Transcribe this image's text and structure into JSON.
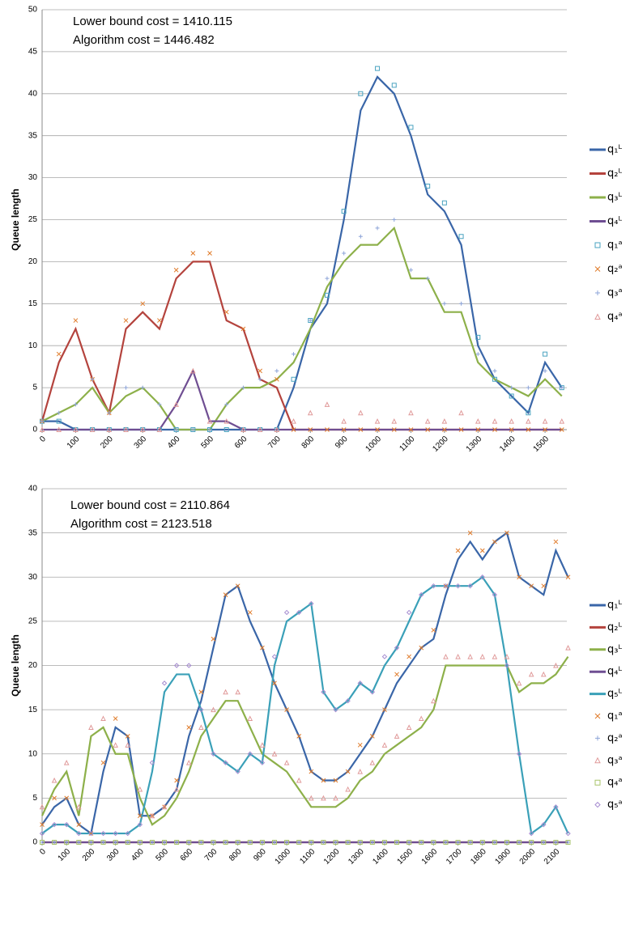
{
  "chart_data": [
    {
      "type": "line",
      "annotations": [
        "Lower bound cost = 1410.115",
        "Algorithm cost = 1446.482"
      ],
      "y_label": "Queue length",
      "xlim": [
        0,
        1565
      ],
      "ylim": [
        0,
        50
      ],
      "xticks": [
        0,
        100,
        200,
        300,
        400,
        500,
        600,
        700,
        800,
        900,
        1000,
        1100,
        1200,
        1300,
        1400,
        1500
      ],
      "yticks": [
        0,
        5,
        10,
        15,
        20,
        25,
        30,
        35,
        40,
        45,
        50
      ],
      "grid": true,
      "legend": "right",
      "x": [
        0,
        50,
        100,
        150,
        200,
        250,
        300,
        350,
        400,
        450,
        500,
        550,
        600,
        650,
        700,
        750,
        800,
        850,
        900,
        950,
        1000,
        1050,
        1100,
        1150,
        1200,
        1250,
        1300,
        1350,
        1400,
        1450,
        1500,
        1550
      ],
      "series": [
        {
          "name": "q₁ᴸ",
          "color": "#3a66a8",
          "marker": "line",
          "values": [
            1,
            1,
            0,
            0,
            0,
            0,
            0,
            0,
            0,
            0,
            0,
            0,
            0,
            0,
            0,
            5,
            12,
            15,
            25,
            38,
            42,
            40,
            35,
            28,
            26,
            22,
            10,
            6,
            4,
            2,
            8,
            5
          ]
        },
        {
          "name": "q₂ᴸ",
          "color": "#b4433d",
          "marker": "line",
          "values": [
            1,
            8,
            12,
            6,
            2,
            12,
            14,
            12,
            18,
            20,
            20,
            13,
            12,
            6,
            5,
            0,
            0,
            0,
            0,
            0,
            0,
            0,
            0,
            0,
            0,
            0,
            0,
            0,
            0,
            0,
            0,
            0
          ]
        },
        {
          "name": "q₃ᴸ",
          "color": "#8db04a",
          "marker": "line",
          "values": [
            1,
            2,
            3,
            5,
            2,
            4,
            5,
            3,
            0,
            0,
            0,
            3,
            5,
            5,
            6,
            8,
            12,
            17,
            20,
            22,
            22,
            24,
            18,
            18,
            14,
            14,
            8,
            6,
            5,
            4,
            6,
            4
          ]
        },
        {
          "name": "q₄ᴸ",
          "color": "#6f4e92",
          "marker": "line",
          "values": [
            0,
            0,
            0,
            0,
            0,
            0,
            0,
            0,
            3,
            7,
            1,
            1,
            0,
            0,
            0,
            0,
            0,
            0,
            0,
            0,
            0,
            0,
            0,
            0,
            0,
            0,
            0,
            0,
            0,
            0,
            0,
            0
          ]
        },
        {
          "name": "q₁ᵃ",
          "color": "#4aa3c0",
          "marker": "square",
          "values": [
            1,
            1,
            0,
            0,
            0,
            0,
            0,
            0,
            0,
            0,
            0,
            0,
            0,
            0,
            0,
            6,
            13,
            16,
            26,
            40,
            43,
            41,
            36,
            29,
            27,
            23,
            11,
            6,
            4,
            2,
            9,
            5
          ]
        },
        {
          "name": "q₂ᵃ",
          "color": "#e07b2a",
          "marker": "x",
          "values": [
            1,
            9,
            13,
            6,
            2,
            13,
            15,
            13,
            19,
            21,
            21,
            14,
            12,
            7,
            6,
            0,
            0,
            0,
            0,
            0,
            0,
            0,
            0,
            0,
            0,
            0,
            0,
            0,
            0,
            0,
            0,
            0
          ]
        },
        {
          "name": "q₃ᵃ",
          "color": "#8da4d8",
          "marker": "plus",
          "values": [
            1,
            2,
            3,
            6,
            2,
            5,
            5,
            3,
            0,
            0,
            0,
            3,
            5,
            6,
            7,
            9,
            13,
            18,
            21,
            23,
            24,
            25,
            19,
            18,
            15,
            15,
            9,
            7,
            5,
            5,
            7,
            5
          ]
        },
        {
          "name": "q₄ᵃ",
          "color": "#e09a9a",
          "marker": "triangle",
          "values": [
            0,
            0,
            0,
            0,
            0,
            0,
            0,
            0,
            3,
            7,
            1,
            1,
            0,
            0,
            0,
            1,
            2,
            3,
            1,
            2,
            1,
            1,
            2,
            1,
            1,
            2,
            1,
            1,
            1,
            1,
            1,
            1
          ]
        }
      ]
    },
    {
      "type": "line",
      "annotations": [
        "Lower bound cost = 2110.864",
        "Algorithm cost = 2123.518"
      ],
      "y_label": "Queue length",
      "xlim": [
        0,
        2145
      ],
      "ylim": [
        0,
        40
      ],
      "xticks": [
        0,
        100,
        200,
        300,
        400,
        500,
        600,
        700,
        800,
        900,
        1000,
        1100,
        1200,
        1300,
        1400,
        1500,
        1600,
        1700,
        1800,
        1900,
        2000,
        2100
      ],
      "yticks": [
        0,
        5,
        10,
        15,
        20,
        25,
        30,
        35,
        40
      ],
      "grid": true,
      "legend": "right",
      "x": [
        0,
        50,
        100,
        150,
        200,
        250,
        300,
        350,
        400,
        450,
        500,
        550,
        600,
        650,
        700,
        750,
        800,
        850,
        900,
        950,
        1000,
        1050,
        1100,
        1150,
        1200,
        1250,
        1300,
        1350,
        1400,
        1450,
        1500,
        1550,
        1600,
        1650,
        1700,
        1750,
        1800,
        1850,
        1900,
        1950,
        2000,
        2050,
        2100,
        2150
      ],
      "series": [
        {
          "name": "q₁ᴸ",
          "color": "#3a66a8",
          "marker": "line",
          "values": [
            2,
            4,
            5,
            2,
            1,
            8,
            13,
            12,
            3,
            3,
            4,
            6,
            12,
            16,
            22,
            28,
            29,
            25,
            22,
            18,
            15,
            12,
            8,
            7,
            7,
            8,
            10,
            12,
            15,
            18,
            20,
            22,
            23,
            28,
            32,
            34,
            32,
            34,
            35,
            30,
            29,
            28,
            33,
            30
          ]
        },
        {
          "name": "q₂ᴸ",
          "color": "#b4433d",
          "marker": "line",
          "values": [
            0,
            0,
            0,
            0,
            0,
            0,
            0,
            0,
            0,
            0,
            0,
            0,
            0,
            0,
            0,
            0,
            0,
            0,
            0,
            0,
            0,
            0,
            0,
            0,
            0,
            0,
            0,
            0,
            0,
            0,
            0,
            0,
            0,
            0,
            0,
            0,
            0,
            0,
            0,
            0,
            0,
            0,
            0,
            0
          ]
        },
        {
          "name": "q₃ᴸ",
          "color": "#8db04a",
          "marker": "line",
          "values": [
            3,
            6,
            8,
            3,
            12,
            13,
            10,
            10,
            5,
            2,
            3,
            5,
            8,
            12,
            14,
            16,
            16,
            13,
            10,
            9,
            8,
            6,
            4,
            4,
            4,
            5,
            7,
            8,
            10,
            11,
            12,
            13,
            15,
            20,
            20,
            20,
            20,
            20,
            20,
            17,
            18,
            18,
            19,
            21
          ]
        },
        {
          "name": "q₄ᴸ",
          "color": "#6f4e92",
          "marker": "line",
          "values": [
            0,
            0,
            0,
            0,
            0,
            0,
            0,
            0,
            0,
            0,
            0,
            0,
            0,
            0,
            0,
            0,
            0,
            0,
            0,
            0,
            0,
            0,
            0,
            0,
            0,
            0,
            0,
            0,
            0,
            0,
            0,
            0,
            0,
            0,
            0,
            0,
            0,
            0,
            0,
            0,
            0,
            0,
            0,
            0
          ]
        },
        {
          "name": "q₅ᴸ",
          "color": "#3aa0b8",
          "marker": "line",
          "values": [
            1,
            2,
            2,
            1,
            1,
            1,
            1,
            1,
            2,
            8,
            17,
            19,
            19,
            15,
            10,
            9,
            8,
            10,
            9,
            20,
            25,
            26,
            27,
            17,
            15,
            16,
            18,
            17,
            20,
            22,
            25,
            28,
            29,
            29,
            29,
            29,
            30,
            28,
            20,
            10,
            1,
            2,
            4,
            1
          ]
        },
        {
          "name": "q₁ᵃ",
          "color": "#e07b2a",
          "marker": "x",
          "values": [
            2,
            5,
            5,
            2,
            1,
            9,
            14,
            12,
            3,
            3,
            4,
            7,
            13,
            17,
            23,
            28,
            29,
            26,
            22,
            18,
            15,
            12,
            8,
            7,
            7,
            8,
            11,
            12,
            15,
            19,
            21,
            22,
            24,
            29,
            33,
            35,
            33,
            34,
            35,
            30,
            29,
            29,
            34,
            30
          ]
        },
        {
          "name": "q₂ᵃ",
          "color": "#8da4d8",
          "marker": "plus",
          "values": [
            0,
            0,
            0,
            0,
            0,
            0,
            0,
            0,
            0,
            0,
            0,
            0,
            0,
            0,
            0,
            0,
            0,
            0,
            0,
            0,
            0,
            0,
            0,
            0,
            0,
            0,
            0,
            0,
            0,
            0,
            0,
            0,
            0,
            0,
            0,
            0,
            0,
            0,
            0,
            0,
            0,
            0,
            0,
            0
          ]
        },
        {
          "name": "q₃ᵃ",
          "color": "#e09a9a",
          "marker": "triangle",
          "values": [
            4,
            7,
            9,
            4,
            13,
            14,
            11,
            11,
            6,
            3,
            4,
            6,
            9,
            13,
            15,
            17,
            17,
            14,
            11,
            10,
            9,
            7,
            5,
            5,
            5,
            6,
            8,
            9,
            11,
            12,
            13,
            14,
            16,
            21,
            21,
            21,
            21,
            21,
            21,
            18,
            19,
            19,
            20,
            22
          ]
        },
        {
          "name": "q₄ᵃ",
          "color": "#a8c46a",
          "marker": "square",
          "values": [
            0,
            0,
            0,
            0,
            0,
            0,
            0,
            0,
            0,
            0,
            0,
            0,
            0,
            0,
            0,
            0,
            0,
            0,
            0,
            0,
            0,
            0,
            0,
            0,
            0,
            0,
            0,
            0,
            0,
            0,
            0,
            0,
            0,
            0,
            0,
            0,
            0,
            0,
            0,
            0,
            0,
            0,
            0,
            0
          ]
        },
        {
          "name": "q₅ᵃ",
          "color": "#a58bd0",
          "marker": "diamond",
          "values": [
            1,
            2,
            2,
            1,
            1,
            1,
            1,
            1,
            2,
            9,
            18,
            20,
            20,
            15,
            10,
            9,
            8,
            10,
            9,
            21,
            26,
            26,
            27,
            17,
            15,
            16,
            18,
            17,
            21,
            22,
            26,
            28,
            29,
            29,
            29,
            29,
            30,
            28,
            20,
            10,
            1,
            2,
            4,
            1
          ]
        }
      ]
    }
  ]
}
